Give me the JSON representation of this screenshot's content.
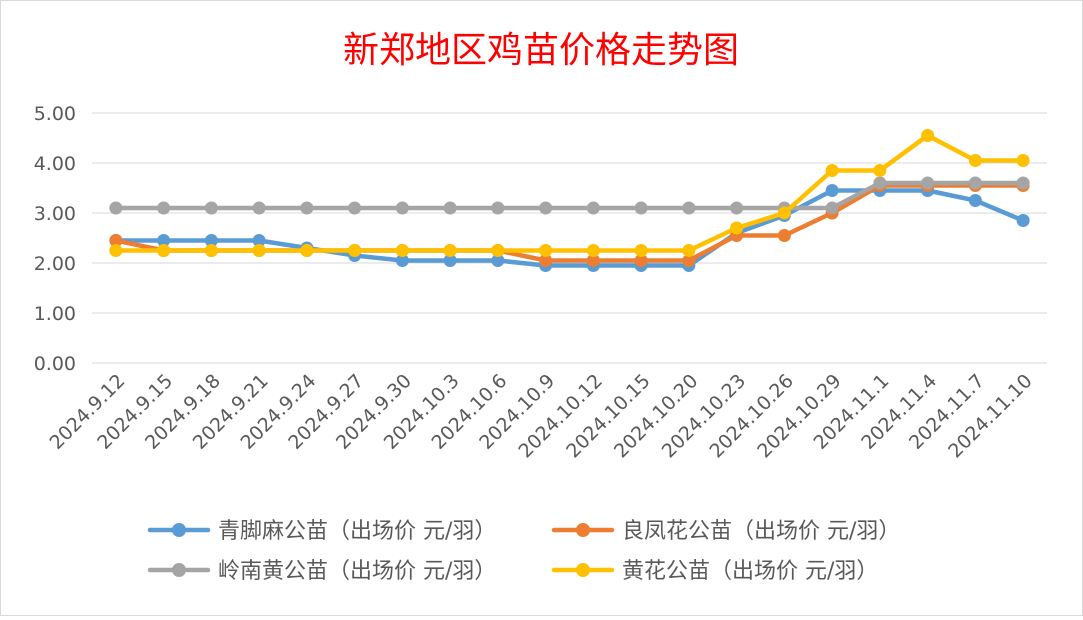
{
  "chart_data": {
    "type": "line",
    "title": "新郑地区鸡苗价格走势图",
    "xlabel": "",
    "ylabel": "",
    "ylim": [
      0,
      5
    ],
    "yticks": [
      "0.00",
      "1.00",
      "2.00",
      "3.00",
      "4.00",
      "5.00"
    ],
    "grid": true,
    "legend_position": "bottom",
    "categories": [
      "2024.9.12",
      "2024.9.15",
      "2024.9.18",
      "2024.9.21",
      "2024.9.24",
      "2024.9.27",
      "2024.9.30",
      "2024.10.3",
      "2024.10.6",
      "2024.10.9",
      "2024.10.12",
      "2024.10.15",
      "2024.10.20",
      "2024.10.23",
      "2024.10.26",
      "2024.10.29",
      "2024.11.1",
      "2024.11.4",
      "2024.11.7",
      "2024.11.10"
    ],
    "series": [
      {
        "name": "青脚麻公苗（出场价 元/羽）",
        "color": "#5B9BD5",
        "values": [
          2.45,
          2.45,
          2.45,
          2.45,
          2.3,
          2.15,
          2.05,
          2.05,
          2.05,
          1.95,
          1.95,
          1.95,
          1.95,
          2.6,
          2.95,
          3.45,
          3.45,
          3.45,
          3.25,
          2.85
        ]
      },
      {
        "name": "良凤花公苗（出场价 元/羽）",
        "color": "#ED7D31",
        "values": [
          2.45,
          2.25,
          2.25,
          2.25,
          2.25,
          2.25,
          2.25,
          2.25,
          2.25,
          2.05,
          2.05,
          2.05,
          2.05,
          2.55,
          2.55,
          3.0,
          3.55,
          3.55,
          3.55,
          3.55
        ]
      },
      {
        "name": "岭南黄公苗（出场价 元/羽）",
        "color": "#A5A5A5",
        "values": [
          3.1,
          3.1,
          3.1,
          3.1,
          3.1,
          3.1,
          3.1,
          3.1,
          3.1,
          3.1,
          3.1,
          3.1,
          3.1,
          3.1,
          3.1,
          3.1,
          3.6,
          3.6,
          3.6,
          3.6
        ]
      },
      {
        "name": "黄花公苗（出场价 元/羽）",
        "color": "#FFC000",
        "values": [
          2.25,
          2.25,
          2.25,
          2.25,
          2.25,
          2.25,
          2.25,
          2.25,
          2.25,
          2.25,
          2.25,
          2.25,
          2.25,
          2.7,
          3.0,
          3.85,
          3.85,
          4.55,
          4.05,
          4.05
        ]
      }
    ]
  }
}
